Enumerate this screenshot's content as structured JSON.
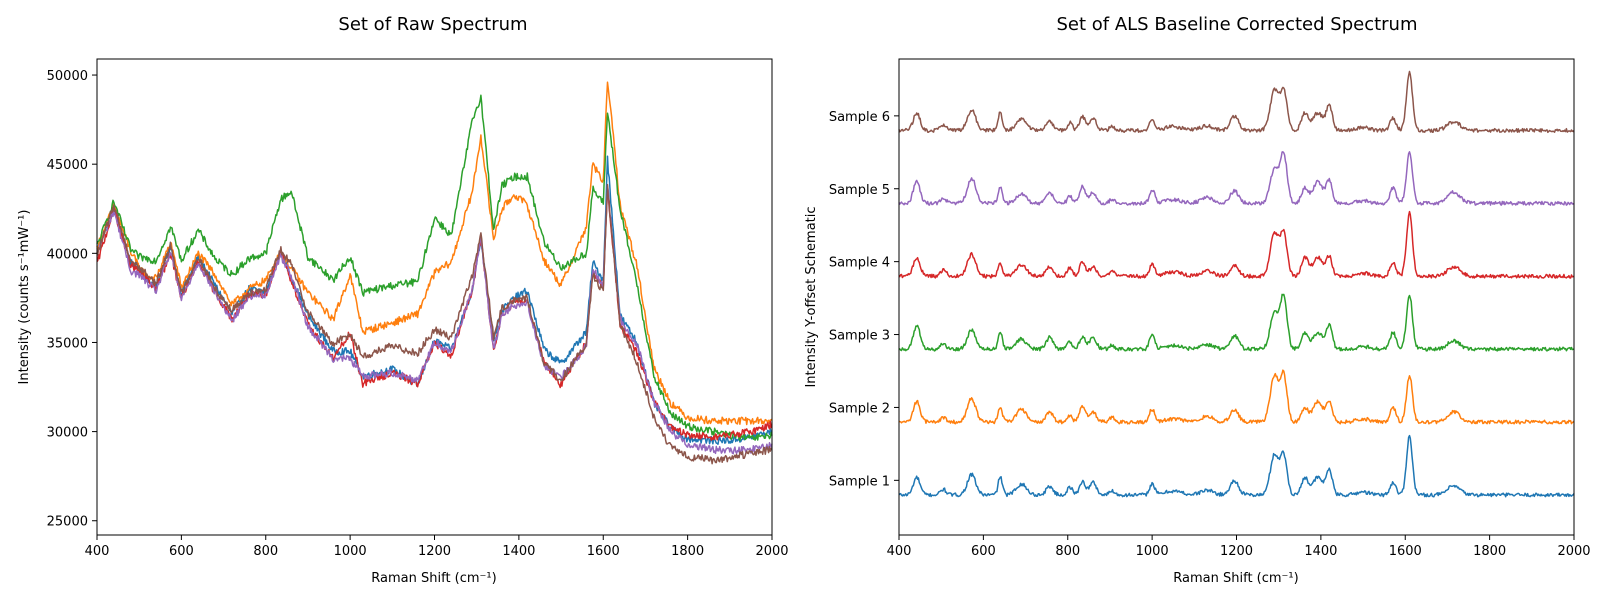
{
  "chart_data": [
    {
      "type": "line",
      "title": "Set of Raw Spectrum",
      "xlabel": "Raman Shift (cm⁻¹)",
      "ylabel": "Intensity (counts s⁻¹mW⁻¹)",
      "xlim": [
        400,
        2000
      ],
      "ylim": [
        24200,
        50900
      ],
      "xticks": [
        400,
        600,
        800,
        1000,
        1200,
        1400,
        1600,
        1800,
        2000
      ],
      "yticks": [
        25000,
        30000,
        35000,
        40000,
        45000,
        50000
      ],
      "grid": false,
      "legend": "none",
      "x_knots": [
        400,
        440,
        480,
        500,
        520,
        540,
        575,
        600,
        640,
        680,
        720,
        760,
        800,
        835,
        860,
        900,
        960,
        1000,
        1030,
        1100,
        1160,
        1200,
        1240,
        1290,
        1310,
        1340,
        1360,
        1390,
        1420,
        1460,
        1500,
        1560,
        1575,
        1600,
        1610,
        1640,
        1680,
        1720,
        1760,
        1800,
        1860,
        1900,
        1950,
        2000
      ],
      "series": [
        {
          "color": "#1f77b4",
          "values": [
            40200,
            42500,
            39500,
            39200,
            38500,
            38200,
            40300,
            37800,
            39800,
            38200,
            36600,
            38000,
            37800,
            40100,
            38700,
            36500,
            34500,
            34500,
            33100,
            33500,
            32600,
            35100,
            34600,
            38000,
            40800,
            35200,
            36800,
            37500,
            37900,
            34600,
            33800,
            35600,
            39500,
            38500,
            45300,
            36500,
            35000,
            31600,
            30200,
            29600,
            29500,
            29500,
            29700,
            30000
          ]
        },
        {
          "color": "#ff7f0e",
          "values": [
            40300,
            42700,
            40100,
            39200,
            38700,
            38600,
            40600,
            38100,
            40000,
            38800,
            37100,
            38000,
            38500,
            40000,
            39200,
            37800,
            36300,
            38800,
            35600,
            36100,
            36600,
            38900,
            39500,
            43500,
            46600,
            40800,
            42500,
            43300,
            42700,
            39600,
            38200,
            41500,
            45000,
            44000,
            49800,
            42700,
            39300,
            33600,
            31600,
            30800,
            30600,
            30600,
            30600,
            30600
          ]
        },
        {
          "color": "#2ca02c",
          "values": [
            40400,
            42900,
            40200,
            39800,
            39700,
            39600,
            41500,
            39600,
            41300,
            39700,
            38800,
            39700,
            40000,
            43000,
            43500,
            39800,
            38500,
            39800,
            37800,
            38200,
            38400,
            42000,
            41000,
            47500,
            48800,
            41300,
            43800,
            44300,
            44300,
            40600,
            39200,
            40000,
            43600,
            42800,
            48000,
            42400,
            38300,
            33100,
            31000,
            30300,
            30000,
            29800,
            29600,
            29800
          ]
        },
        {
          "color": "#d62728",
          "values": [
            39400,
            42500,
            39300,
            39000,
            38500,
            38000,
            40000,
            37500,
            39500,
            37800,
            36300,
            37700,
            37600,
            40200,
            38500,
            36000,
            34100,
            35500,
            32700,
            33300,
            32700,
            34900,
            34300,
            38000,
            40900,
            34500,
            36600,
            37300,
            37300,
            33900,
            32600,
            35000,
            39000,
            38000,
            43700,
            36000,
            34400,
            31700,
            30200,
            29800,
            29700,
            29800,
            30000,
            30400
          ]
        },
        {
          "color": "#9467bd",
          "values": [
            40000,
            42400,
            39000,
            38800,
            38300,
            37900,
            40100,
            37400,
            39500,
            37800,
            36200,
            37600,
            37700,
            39900,
            38800,
            35900,
            34100,
            34100,
            33100,
            33300,
            32900,
            35000,
            34500,
            38000,
            40900,
            34500,
            36600,
            37100,
            37200,
            33700,
            33000,
            34800,
            39200,
            38200,
            43800,
            36300,
            34900,
            31700,
            30000,
            29300,
            29000,
            28900,
            29000,
            29200
          ]
        },
        {
          "color": "#8c564b",
          "values": [
            39900,
            42700,
            39600,
            39200,
            38800,
            38300,
            40500,
            37700,
            39800,
            38000,
            36800,
            37800,
            38000,
            40200,
            39400,
            36700,
            34900,
            35500,
            34200,
            34800,
            34400,
            35700,
            35300,
            38800,
            41000,
            35300,
            36900,
            37400,
            37500,
            33800,
            32900,
            34900,
            38800,
            37800,
            43800,
            36000,
            33900,
            30800,
            29100,
            28600,
            28400,
            28500,
            28800,
            29000
          ]
        }
      ]
    },
    {
      "type": "line",
      "title": "Set of ALS Baseline Corrected Spectrum",
      "xlabel": "Raman Shift (cm⁻¹)",
      "ylabel": "Intensity Y-offset Schematic",
      "xlim": [
        400,
        2000
      ],
      "ylim": [
        0.25,
        6.78
      ],
      "xticks": [
        400,
        600,
        800,
        1000,
        1200,
        1400,
        1600,
        1800,
        2000
      ],
      "yticks": [
        1,
        2,
        3,
        4,
        5,
        6
      ],
      "ytick_labels": [
        "Sample 1",
        "Sample 2",
        "Sample 3",
        "Sample 4",
        "Sample 5",
        "Sample 6"
      ],
      "grid": false,
      "legend": "none",
      "peaks": [
        {
          "x": 442,
          "w": 8,
          "h": 0.28
        },
        {
          "x": 505,
          "w": 7,
          "h": 0.07
        },
        {
          "x": 572,
          "w": 10,
          "h": 0.3
        },
        {
          "x": 640,
          "w": 5,
          "h": 0.22
        },
        {
          "x": 690,
          "w": 12,
          "h": 0.15
        },
        {
          "x": 757,
          "w": 8,
          "h": 0.14
        },
        {
          "x": 805,
          "w": 6,
          "h": 0.1
        },
        {
          "x": 835,
          "w": 7,
          "h": 0.2
        },
        {
          "x": 860,
          "w": 8,
          "h": 0.15
        },
        {
          "x": 905,
          "w": 6,
          "h": 0.06
        },
        {
          "x": 1000,
          "w": 6,
          "h": 0.18
        },
        {
          "x": 1050,
          "w": 20,
          "h": 0.05
        },
        {
          "x": 1130,
          "w": 15,
          "h": 0.07
        },
        {
          "x": 1195,
          "w": 10,
          "h": 0.17
        },
        {
          "x": 1290,
          "w": 10,
          "h": 0.55
        },
        {
          "x": 1312,
          "w": 8,
          "h": 0.62
        },
        {
          "x": 1362,
          "w": 8,
          "h": 0.22
        },
        {
          "x": 1393,
          "w": 12,
          "h": 0.26
        },
        {
          "x": 1420,
          "w": 7,
          "h": 0.3
        },
        {
          "x": 1500,
          "w": 15,
          "h": 0.04
        },
        {
          "x": 1571,
          "w": 7,
          "h": 0.2
        },
        {
          "x": 1610,
          "w": 7,
          "h": 0.75
        },
        {
          "x": 1715,
          "w": 15,
          "h": 0.13
        }
      ],
      "series": [
        {
          "name": "Sample 1",
          "offset": 0.8,
          "color": "#1f77b4"
        },
        {
          "name": "Sample 2",
          "offset": 1.8,
          "color": "#ff7f0e"
        },
        {
          "name": "Sample 3",
          "offset": 2.8,
          "color": "#2ca02c"
        },
        {
          "name": "Sample 4",
          "offset": 3.8,
          "color": "#d62728"
        },
        {
          "name": "Sample 5",
          "offset": 4.8,
          "color": "#9467bd"
        },
        {
          "name": "Sample 6",
          "offset": 5.8,
          "color": "#8c564b"
        }
      ]
    }
  ]
}
